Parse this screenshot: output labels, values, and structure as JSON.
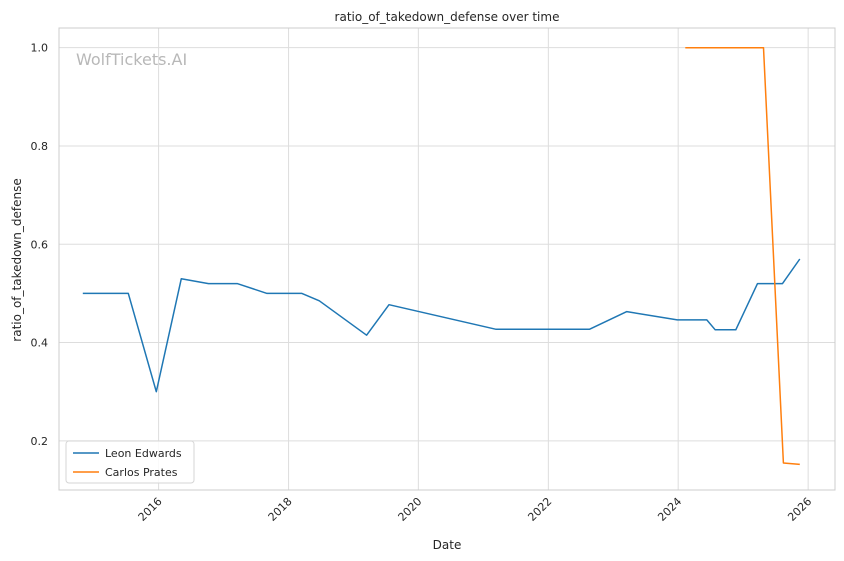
{
  "chart_data": {
    "type": "line",
    "title": "ratio_of_takedown_defense over time",
    "xlabel": "Date",
    "ylabel": "ratio_of_takedown_defense",
    "watermark": "WolfTickets.AI",
    "xlim": [
      "2014-06-20",
      "2026-06-01"
    ],
    "ylim": [
      0.1,
      1.04
    ],
    "xticks": [
      {
        "date": "2016-01-01",
        "label": "2016"
      },
      {
        "date": "2018-01-01",
        "label": "2018"
      },
      {
        "date": "2020-01-01",
        "label": "2020"
      },
      {
        "date": "2022-01-01",
        "label": "2022"
      },
      {
        "date": "2024-01-01",
        "label": "2024"
      },
      {
        "date": "2026-01-01",
        "label": "2026"
      }
    ],
    "yticks": [
      {
        "value": 0.2,
        "label": "0.2"
      },
      {
        "value": 0.4,
        "label": "0.4"
      },
      {
        "value": 0.6,
        "label": "0.6"
      },
      {
        "value": 0.8,
        "label": "0.8"
      },
      {
        "value": 1.0,
        "label": "1.0"
      }
    ],
    "grid": true,
    "legend": "lower-left",
    "series": [
      {
        "name": "Leon Edwards",
        "color": "#1f77b4",
        "points": [
          [
            "2014-11-01",
            0.5
          ],
          [
            "2015-07-15",
            0.5
          ],
          [
            "2015-12-19",
            0.3
          ],
          [
            "2016-05-08",
            0.53
          ],
          [
            "2016-10-08",
            0.52
          ],
          [
            "2017-03-18",
            0.52
          ],
          [
            "2017-09-02",
            0.5
          ],
          [
            "2018-03-17",
            0.5
          ],
          [
            "2018-06-23",
            0.485
          ],
          [
            "2019-03-16",
            0.415
          ],
          [
            "2019-07-20",
            0.477
          ],
          [
            "2021-03-13",
            0.427
          ],
          [
            "2022-08-20",
            0.427
          ],
          [
            "2023-03-18",
            0.463
          ],
          [
            "2023-12-27",
            0.446
          ],
          [
            "2024-06-10",
            0.446
          ],
          [
            "2024-07-27",
            0.426
          ],
          [
            "2024-11-20",
            0.426
          ],
          [
            "2025-03-22",
            0.52
          ],
          [
            "2025-08-10",
            0.52
          ],
          [
            "2025-11-15",
            0.57
          ]
        ]
      },
      {
        "name": "Carlos Prates",
        "color": "#ff7f0e",
        "points": [
          [
            "2024-02-10",
            1.0
          ],
          [
            "2025-04-25",
            1.0
          ],
          [
            "2025-08-15",
            0.155
          ],
          [
            "2025-11-15",
            0.152
          ]
        ]
      }
    ]
  }
}
